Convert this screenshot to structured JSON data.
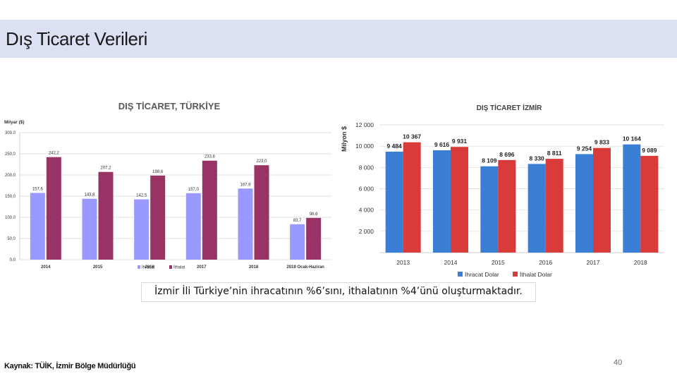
{
  "slide": {
    "title": "Dış Ticaret Verileri",
    "caption": "İzmir İli Türkiye’nin ihracatının %6’sını, ithalatının %4’ünü oluşturmaktadır.",
    "source": "Kaynak: TÜİK, İzmir Bölge Müdürlüğü",
    "page_number": "40"
  },
  "chart_data": [
    {
      "type": "bar",
      "title": "DIŞ TİCARET, TÜRKİYE",
      "ylabel": "Milyar ($)",
      "categories": [
        "2014",
        "2015",
        "2016",
        "2017",
        "2018",
        "2019 Ocak-Haziran"
      ],
      "series": [
        {
          "name": "İhracat",
          "values": [
            157.6,
            143.8,
            142.5,
            157.0,
            167.9,
            83.7
          ],
          "labels": [
            "157,6",
            "143,8",
            "142,5",
            "157,0",
            "167,9",
            "83,7"
          ],
          "color": "#9999ff"
        },
        {
          "name": "İthalat",
          "values": [
            242.2,
            207.2,
            198.6,
            233.8,
            223.0,
            98.6
          ],
          "labels": [
            "242,2",
            "207,2",
            "198,6",
            "233,8",
            "223,0",
            "98,6"
          ],
          "color": "#993366"
        }
      ],
      "ylim": [
        0,
        300
      ],
      "yticks": [
        0,
        50,
        100,
        150,
        200,
        250,
        300
      ],
      "ytick_labels": [
        "0,0",
        "50,0",
        "100,0",
        "150,0",
        "200,0",
        "250,0",
        "300,0"
      ],
      "grid": true,
      "legend_position": "bottom-left"
    },
    {
      "type": "bar",
      "title": "DIŞ TİCARET İZMİR",
      "ylabel": "Milyon $",
      "categories": [
        "2013",
        "2014",
        "2015",
        "2016",
        "2017",
        "2018"
      ],
      "series": [
        {
          "name": "İhracat Dolar",
          "values": [
            9484,
            9616,
            8109,
            8330,
            9254,
            10164
          ],
          "labels": [
            "9 484",
            "9 616",
            "8 109",
            "8 330",
            "9 254",
            "10 164"
          ],
          "color": "#3a7fd5"
        },
        {
          "name": "İthalat Dolar",
          "values": [
            10367,
            9931,
            8696,
            8811,
            9833,
            9089
          ],
          "labels": [
            "10 367",
            "9 931",
            "8 696",
            "8 811",
            "9 833",
            "9 089"
          ],
          "color": "#d93a3a"
        }
      ],
      "ylim": [
        0,
        12000
      ],
      "yticks": [
        2000,
        4000,
        6000,
        8000,
        10000,
        12000
      ],
      "ytick_labels": [
        "2 000",
        "4 000",
        "6 000",
        "8 000",
        "10 000",
        "12 000"
      ],
      "grid": true,
      "legend_position": "bottom-center"
    }
  ]
}
